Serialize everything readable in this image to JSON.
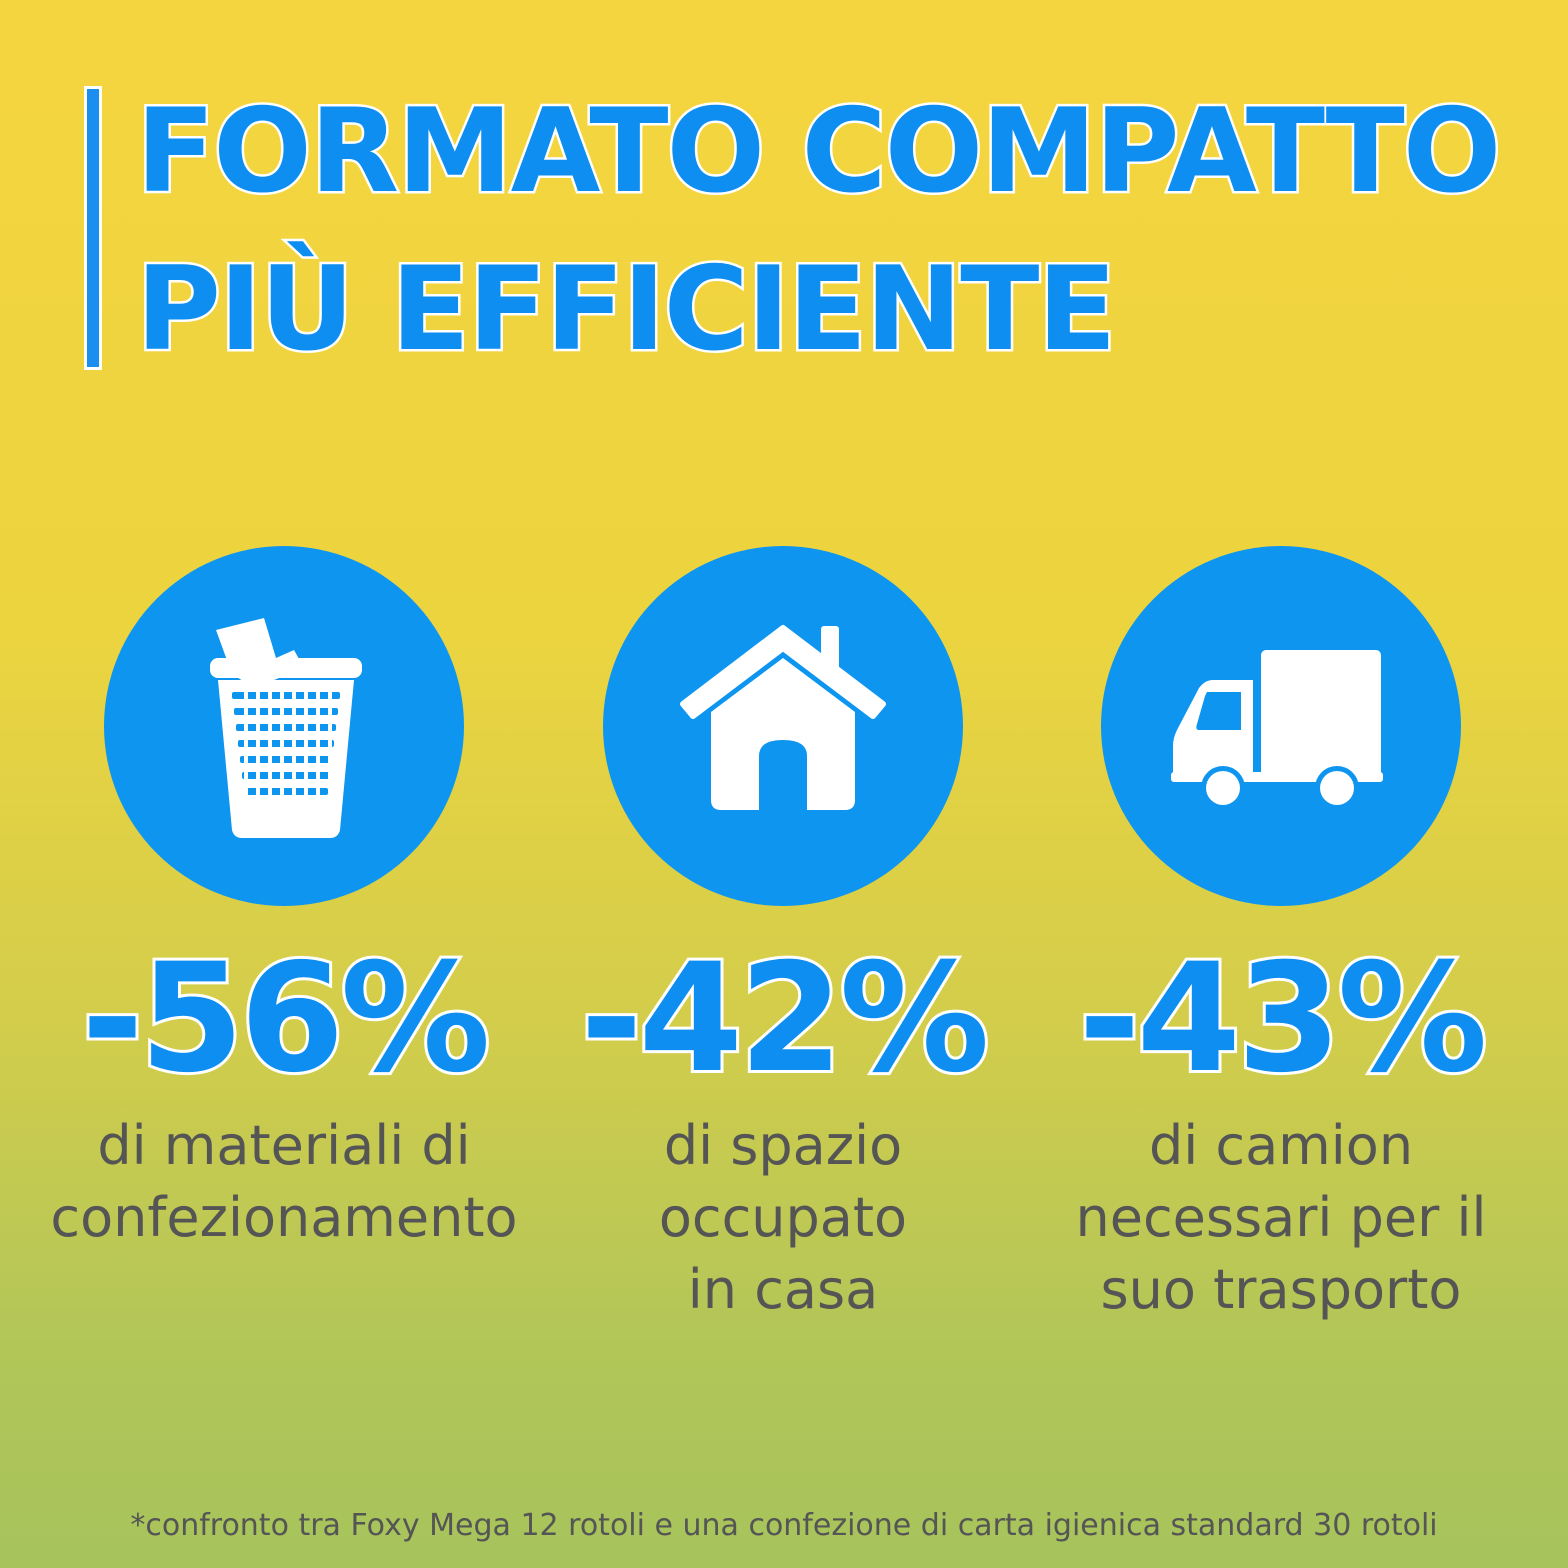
{
  "title": {
    "line1": "FORMATO COMPATTO",
    "line2": "PIÙ EFFICIENTE"
  },
  "stats": [
    {
      "icon": "wastebasket-icon",
      "value": "-56%",
      "lines": [
        "di materiali di",
        "confezionamento"
      ]
    },
    {
      "icon": "house-icon",
      "value": "-42%",
      "lines": [
        "di spazio",
        "occupato",
        "in casa"
      ]
    },
    {
      "icon": "truck-icon",
      "value": "-43%",
      "lines": [
        "di camion",
        "necessari per il",
        "suo trasporto"
      ]
    }
  ],
  "footnote": "*confronto tra Foxy Mega 12 rotoli e una confezione di carta igienica standard 30 rotoli",
  "colors": {
    "accent": "#0e95f0",
    "text": "#555555",
    "background_top": "#f5d53f",
    "background_bottom": "#a6c35c"
  }
}
